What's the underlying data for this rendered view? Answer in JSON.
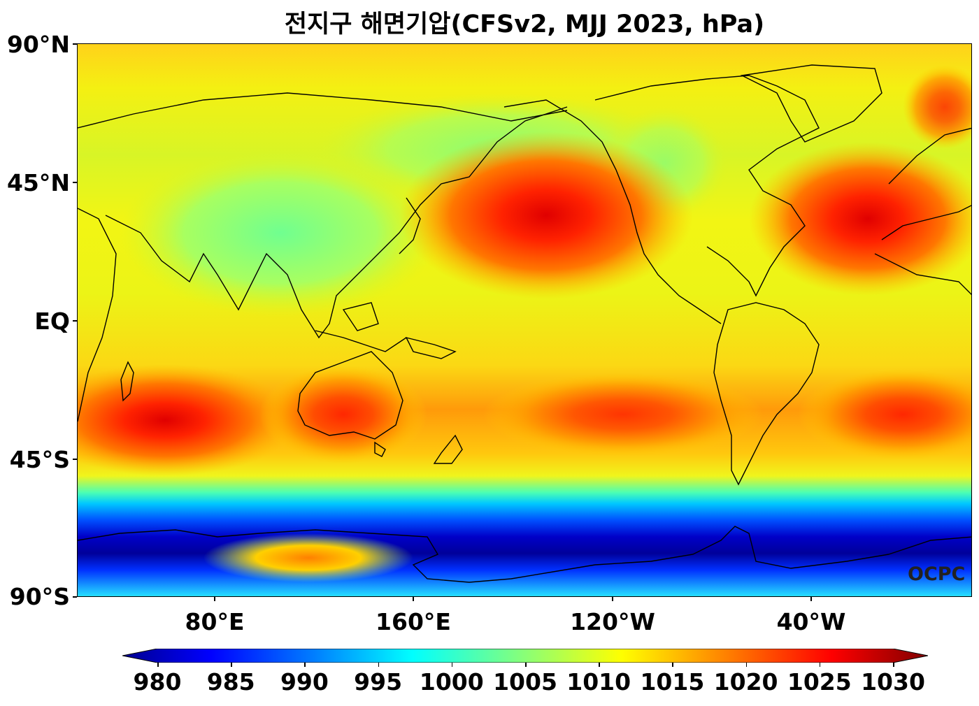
{
  "title": "전지구 해면기압(CFSv2, MJJ 2023, hPa)",
  "watermark": "OCPC",
  "y_axis": {
    "ticks": [
      "90°N",
      "45°N",
      "EQ",
      "45°S",
      "90°S"
    ]
  },
  "x_axis": {
    "ticks": [
      "80°E",
      "160°E",
      "120°W",
      "40°W"
    ]
  },
  "colorbar": {
    "ticks": [
      "980",
      "985",
      "990",
      "995",
      "1000",
      "1005",
      "1010",
      "1015",
      "1020",
      "1025",
      "1030"
    ],
    "min": 980,
    "max": 1030,
    "extend": "both",
    "colormap": "jet",
    "colors": [
      "#00008f",
      "#0000ff",
      "#0080ff",
      "#00ffff",
      "#80ff80",
      "#ffff00",
      "#ff8000",
      "#ff0000",
      "#800000"
    ]
  },
  "map": {
    "projection": "plate carree",
    "central_longitude": 200,
    "features": [
      {
        "name": "North Pacific High",
        "pressure": "high"
      },
      {
        "name": "Azores-Bermuda High",
        "pressure": "high"
      },
      {
        "name": "Mascarene High",
        "pressure": "high"
      },
      {
        "name": "Southern Ocean low belt",
        "pressure": "low"
      }
    ]
  }
}
